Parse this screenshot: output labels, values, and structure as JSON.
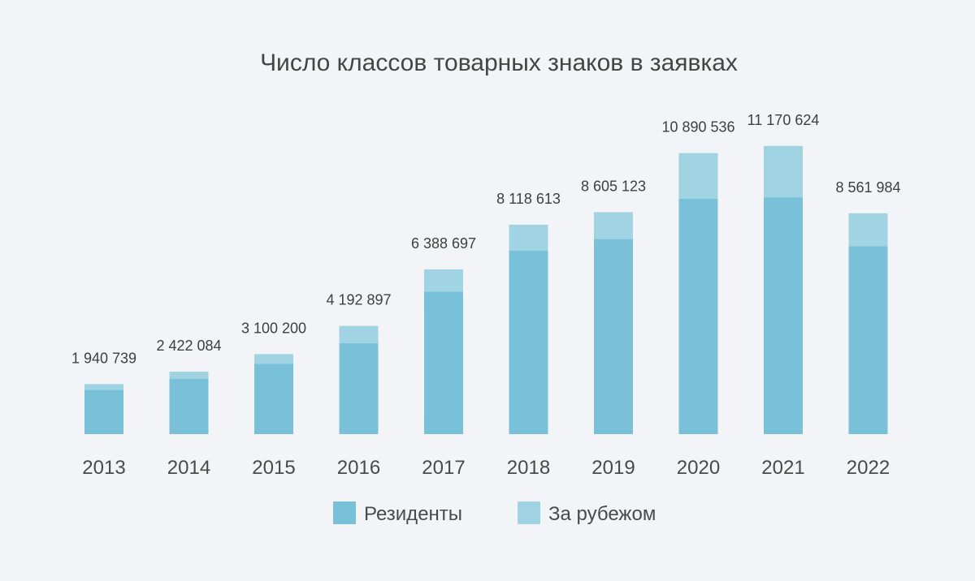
{
  "chart_data": {
    "type": "bar",
    "stacked": true,
    "title": "Число классов товарных знаков в заявках",
    "categories": [
      "2013",
      "2014",
      "2015",
      "2016",
      "2017",
      "2018",
      "2019",
      "2020",
      "2021",
      "2022"
    ],
    "totals": [
      "1 940 739",
      "2 422 084",
      "3 100 200",
      "4 192 897",
      "6 388 697",
      "8 118 613",
      "8 605 123",
      "10 890 536",
      "11 170 624",
      "8 561 984"
    ],
    "series": [
      {
        "name": "Резиденты",
        "color": "#78c1d8",
        "values": [
          1720000,
          2150000,
          2730000,
          3530000,
          5530000,
          7120000,
          7560000,
          9130000,
          9180000,
          7290000
        ]
      },
      {
        "name": "За рубежом",
        "color": "#a1d4e3",
        "values": [
          220739,
          272084,
          370200,
          662897,
          858697,
          998613,
          1045123,
          1760536,
          1990624,
          1271984
        ]
      }
    ],
    "ylim": [
      0,
      11700000
    ],
    "grid": false,
    "legend_position": "bottom"
  }
}
